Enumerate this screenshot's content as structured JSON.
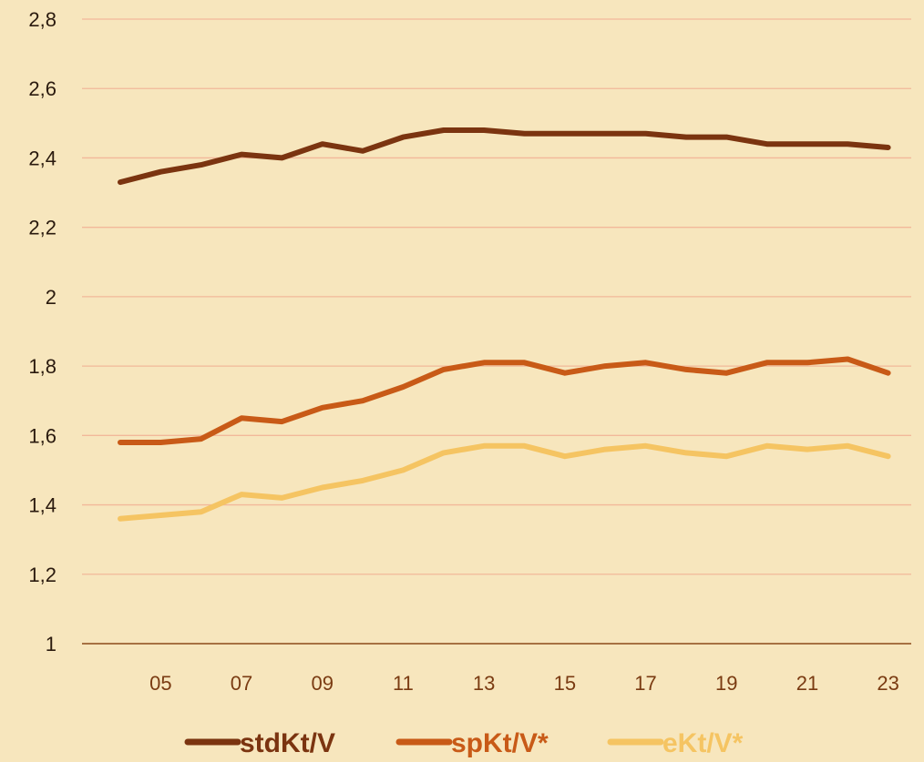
{
  "chart_data": {
    "type": "line",
    "x": [
      "04",
      "05",
      "06",
      "07",
      "08",
      "09",
      "10",
      "11",
      "12",
      "13",
      "14",
      "15",
      "16",
      "17",
      "18",
      "19",
      "20",
      "21",
      "22",
      "23"
    ],
    "x_tick_labels": [
      "05",
      "07",
      "09",
      "11",
      "13",
      "15",
      "17",
      "19",
      "21",
      "23"
    ],
    "y_tick_labels": [
      "1",
      "1,2",
      "1,4",
      "1,6",
      "1,8",
      "2",
      "2,2",
      "2,4",
      "2,6",
      "2,8"
    ],
    "ylim": [
      1,
      2.8
    ],
    "grid": true,
    "legend_position": "bottom",
    "title": "",
    "xlabel": "",
    "ylabel": "",
    "series": [
      {
        "name": "stdKt/V",
        "color": "#7b3410",
        "values": [
          2.33,
          2.36,
          2.38,
          2.41,
          2.4,
          2.44,
          2.42,
          2.46,
          2.48,
          2.48,
          2.47,
          2.47,
          2.47,
          2.47,
          2.46,
          2.46,
          2.44,
          2.44,
          2.44,
          2.43
        ]
      },
      {
        "name": "spKt/V*",
        "color": "#c85a17",
        "values": [
          1.58,
          1.58,
          1.59,
          1.65,
          1.64,
          1.68,
          1.7,
          1.74,
          1.79,
          1.81,
          1.81,
          1.78,
          1.8,
          1.81,
          1.79,
          1.78,
          1.81,
          1.81,
          1.82,
          1.78
        ]
      },
      {
        "name": "eKt/V*",
        "color": "#f5c462",
        "values": [
          1.36,
          1.37,
          1.38,
          1.43,
          1.42,
          1.45,
          1.47,
          1.5,
          1.55,
          1.57,
          1.57,
          1.54,
          1.56,
          1.57,
          1.55,
          1.54,
          1.57,
          1.56,
          1.57,
          1.54
        ]
      }
    ]
  }
}
